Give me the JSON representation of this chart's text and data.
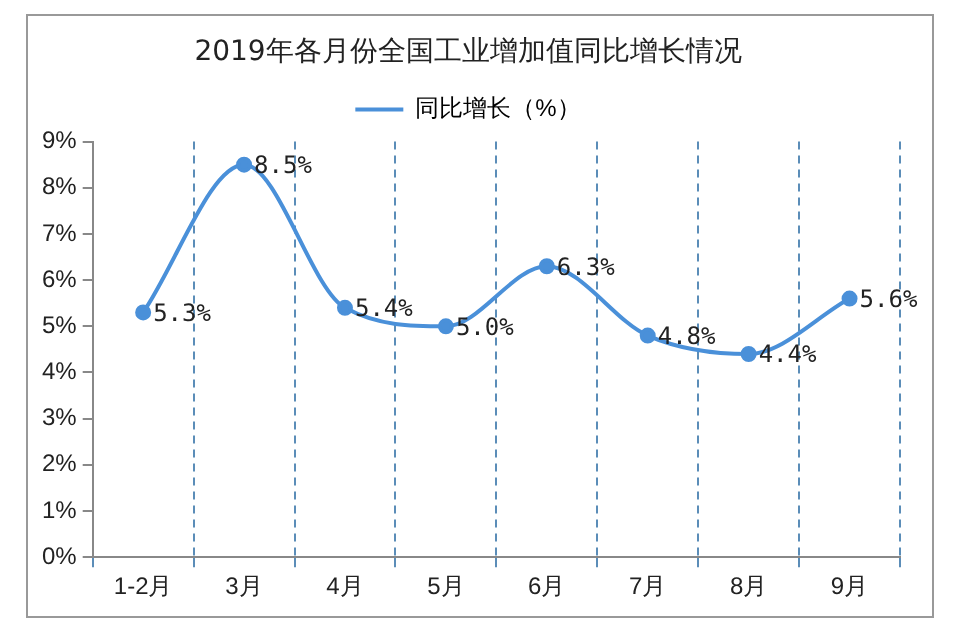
{
  "chart_data": {
    "type": "line",
    "title": "2019年各月份全国工业增加值同比增长情况",
    "categories": [
      "1-2月",
      "3月",
      "4月",
      "5月",
      "6月",
      "7月",
      "8月",
      "9月"
    ],
    "series": [
      {
        "name": "同比增长（%）",
        "color": "#4a90d9",
        "values": [
          5.3,
          8.5,
          5.4,
          5.0,
          6.3,
          4.8,
          4.4,
          5.6
        ],
        "value_labels": [
          "5.3%",
          "8.5%",
          "5.4%",
          "5.0%",
          "6.3%",
          "4.8%",
          "4.4%",
          "5.6%"
        ]
      }
    ],
    "ylim": [
      0,
      9
    ],
    "yticks": [
      {
        "value": 0,
        "label": "0%"
      },
      {
        "value": 1,
        "label": "1%"
      },
      {
        "value": 2,
        "label": "2%"
      },
      {
        "value": 3,
        "label": "3%"
      },
      {
        "value": 4,
        "label": "4%"
      },
      {
        "value": 5,
        "label": "5%"
      },
      {
        "value": 6,
        "label": "6%"
      },
      {
        "value": 7,
        "label": "7%"
      },
      {
        "value": 8,
        "label": "8%"
      },
      {
        "value": 9,
        "label": "9%"
      }
    ],
    "grid": "x",
    "legend": "top",
    "marker": "circle",
    "line_style": "solid"
  }
}
